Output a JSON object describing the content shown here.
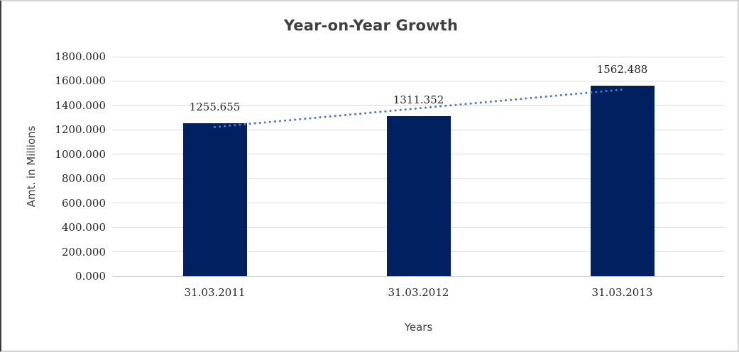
{
  "chart_data": {
    "type": "bar",
    "title": "Year-on-Year Growth",
    "xlabel": "Years",
    "ylabel": "Amt. in Millions",
    "categories": [
      "31.03.2011",
      "31.03.2012",
      "31.03.2013"
    ],
    "values": [
      1255.655,
      1311.352,
      1562.488
    ],
    "data_labels": [
      "1255.655",
      "1311.352",
      "1562.488"
    ],
    "ylim": [
      0,
      1800
    ],
    "ytick_step": 200,
    "ytick_labels": [
      "0.000",
      "200.000",
      "400.000",
      "600.000",
      "800.000",
      "1000.000",
      "1200.000",
      "1400.000",
      "1600.000",
      "1800.000"
    ],
    "grid": true,
    "legend_position": "none",
    "trendline": {
      "type": "linear",
      "style": "dotted"
    },
    "colors": {
      "bar": "#012060",
      "trendline": "#4A7EBB",
      "gridline": "#d9d9d9",
      "tick_text": "#262626",
      "title_text": "#404040"
    }
  }
}
